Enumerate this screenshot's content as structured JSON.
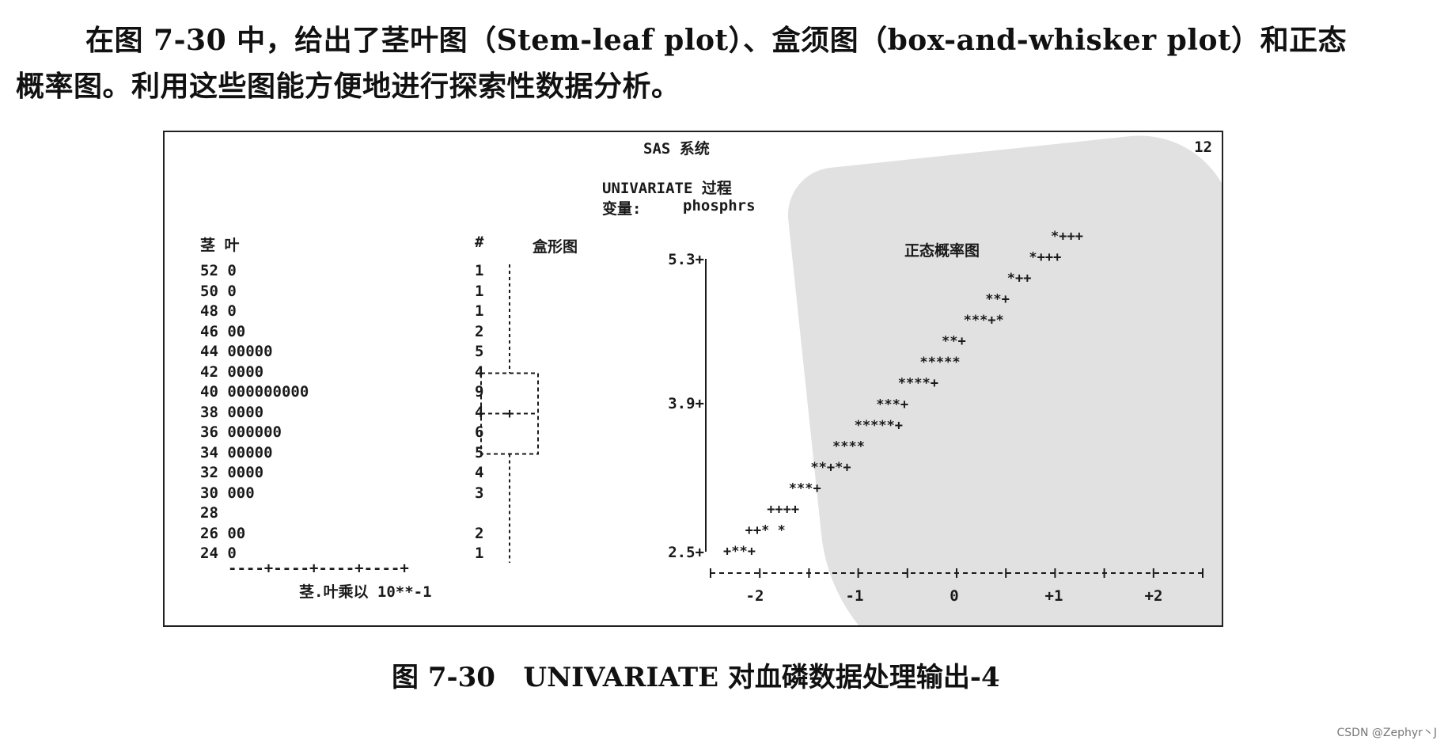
{
  "intro": {
    "line1": "在图 7-30 中，给出了茎叶图（Stem-leaf plot）、盒须图（box-and-whisker plot）和正态",
    "line2": "概率图。利用这些图能方便地进行探索性数据分析。"
  },
  "output": {
    "system_title": "SAS 系统",
    "page_number": "12",
    "procedure_title": "UNIVARIATE 过程",
    "variable_label": "变量:",
    "variable_name": "phosphrs"
  },
  "stem_leaf": {
    "header": "茎 叶",
    "count_header": "#",
    "rows": [
      {
        "stem": "52",
        "leaves": "0",
        "count": "1"
      },
      {
        "stem": "50",
        "leaves": "0",
        "count": "1"
      },
      {
        "stem": "48",
        "leaves": "0",
        "count": "1"
      },
      {
        "stem": "46",
        "leaves": "00",
        "count": "2"
      },
      {
        "stem": "44",
        "leaves": "00000",
        "count": "5"
      },
      {
        "stem": "42",
        "leaves": "0000",
        "count": "4"
      },
      {
        "stem": "40",
        "leaves": "000000000",
        "count": "9"
      },
      {
        "stem": "38",
        "leaves": "0000",
        "count": "4"
      },
      {
        "stem": "36",
        "leaves": "000000",
        "count": "6"
      },
      {
        "stem": "34",
        "leaves": "00000",
        "count": "5"
      },
      {
        "stem": "32",
        "leaves": "0000",
        "count": "4"
      },
      {
        "stem": "30",
        "leaves": "000",
        "count": "3"
      },
      {
        "stem": "28",
        "leaves": "",
        "count": ""
      },
      {
        "stem": "26",
        "leaves": "00",
        "count": "2"
      },
      {
        "stem": "24",
        "leaves": "0",
        "count": "1"
      }
    ],
    "axis": "----+----+----+----+",
    "multiplier_note": "茎.叶乘以 10**-1"
  },
  "box_plot": {
    "header": "盒形图",
    "min_stem": 24,
    "q1_stem": 34,
    "median_stem": 38,
    "q3_stem": 42,
    "max_stem": 52
  },
  "normal_probability_plot": {
    "header": "正态概率图",
    "y_ticks": [
      "5.3+",
      "3.9+",
      "2.5+"
    ],
    "x_ticks": [
      "-2",
      "-1",
      "0",
      "+1",
      "+2"
    ],
    "point_rows": [
      "+**+",
      "++* *",
      "++++",
      "***+",
      "**+*+",
      "****",
      "*****+",
      "***+",
      "****+",
      "*****",
      "**+",
      "***+*",
      "**+",
      "*++",
      "*+++",
      "*+++"
    ]
  },
  "caption": "图 7-30   UNIVARIATE 对血磷数据处理输出-4",
  "credit": "CSDN @Zephyr丶J"
}
